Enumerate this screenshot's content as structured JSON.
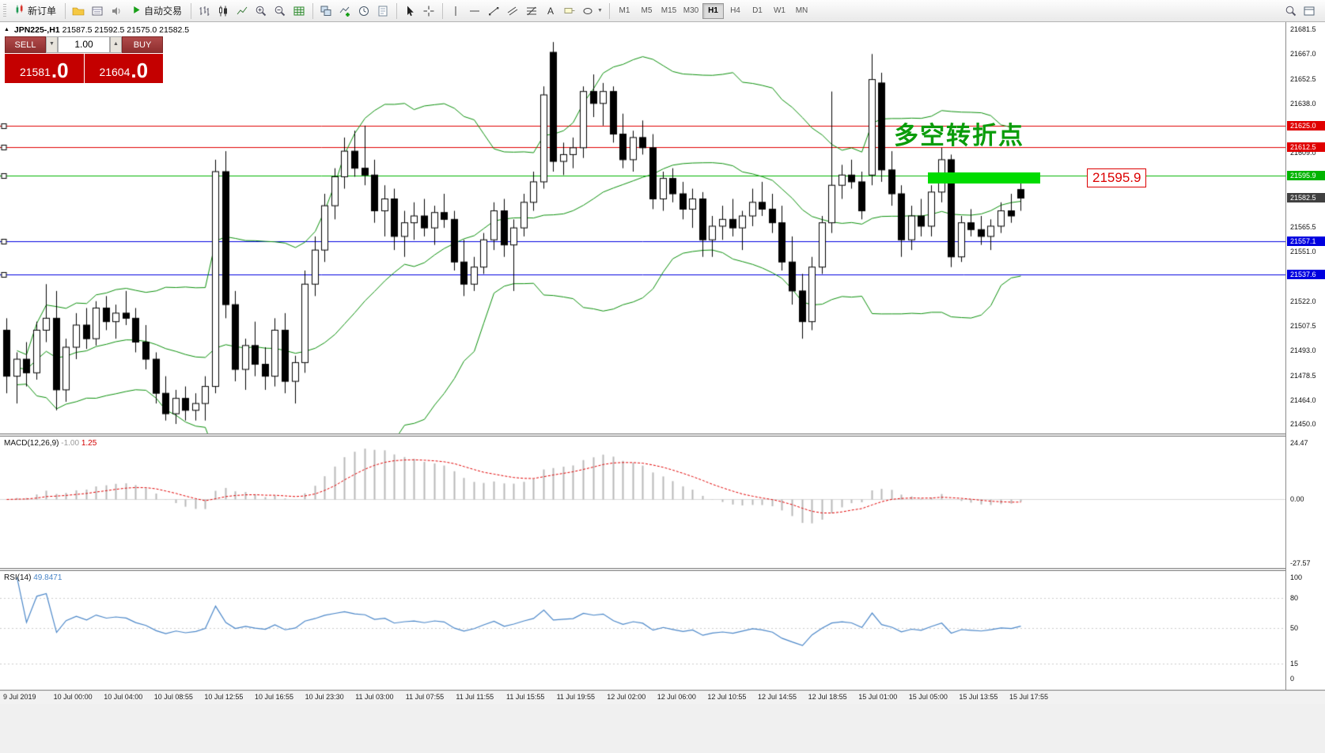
{
  "toolbar": {
    "new_order": "新订单",
    "autotrade": "自动交易",
    "timeframes": [
      "M1",
      "M5",
      "M15",
      "M30",
      "H1",
      "H4",
      "D1",
      "W1",
      "MN"
    ],
    "active_timeframe": "H1"
  },
  "trade_panel": {
    "sell_label": "SELL",
    "buy_label": "BUY",
    "volume": "1.00",
    "sell_price": "21581",
    "sell_pips": ".0",
    "buy_price": "21604",
    "buy_pips": ".0"
  },
  "chart": {
    "symbol": "JPN225-,H1",
    "ohlc_text": "21587.5 21592.5 21575.0 21582.5",
    "annotation": "多空转折点",
    "price_tag": "21595.9",
    "bollinger_color": "#0a8f0a",
    "current_price": {
      "text": "21582.5",
      "bg": "#404040"
    }
  },
  "macd": {
    "name": "MACD(12,26,9)",
    "value_main": "-1.00",
    "value_signal": "1.25",
    "axis": [
      "24.47",
      "0.00",
      "-27.57"
    ],
    "histogram_color": "#b8b8b8",
    "signal_color": "#e00000"
  },
  "rsi": {
    "name": "RSI(14)",
    "value": "49.8471",
    "axis": [
      "100",
      "80",
      "50",
      "15",
      "0"
    ],
    "axis_values": [
      100,
      80,
      50,
      15,
      0
    ],
    "levels": [
      80,
      50,
      15
    ],
    "line_color": "#4a86c8"
  },
  "time_axis": [
    "9 Jul 2019",
    "10 Jul 00:00",
    "10 Jul 04:00",
    "10 Jul 08:55",
    "10 Jul 12:55",
    "10 Jul 16:55",
    "10 Jul 23:30",
    "11 Jul 03:00",
    "11 Jul 07:55",
    "11 Jul 11:55",
    "11 Jul 15:55",
    "11 Jul 19:55",
    "12 Jul 02:00",
    "12 Jul 06:00",
    "12 Jul 10:55",
    "12 Jul 14:55",
    "12 Jul 18:55",
    "15 Jul 01:00",
    "15 Jul 05:00",
    "15 Jul 13:55",
    "15 Jul 17:55"
  ],
  "chart_data": {
    "type": "candlestick",
    "symbol": "JPN225-",
    "timeframe": "H1",
    "price_range": [
      21450.0,
      21681.5
    ],
    "price_ticks": [
      "21681.5",
      "21667.0",
      "21652.5",
      "21638.0",
      "21609.0",
      "21565.5",
      "21551.0",
      "21522.0",
      "21507.5",
      "21493.0",
      "21478.5",
      "21464.0",
      "21450.0"
    ],
    "hlines": [
      {
        "price": 21625.0,
        "label": "21625.0",
        "color": "#e00000"
      },
      {
        "price": 21612.5,
        "label": "21612.5",
        "color": "#e00000"
      },
      {
        "price": 21595.9,
        "label": "21595.9",
        "color": "#00b400"
      },
      {
        "price": 21557.1,
        "label": "21557.1",
        "color": "#0000e0"
      },
      {
        "price": 21537.6,
        "label": "21537.6",
        "color": "#0000e0"
      }
    ],
    "current_price": 21582.5,
    "highlight_rect": {
      "price": 21595.9,
      "color": "#00dc00"
    },
    "indicators": [
      "Bollinger Bands",
      "MACD(12,26,9)",
      "RSI(14)"
    ],
    "ohlc": [
      [
        21505,
        21512,
        21468,
        21478
      ],
      [
        21478,
        21492,
        21462,
        21488
      ],
      [
        21488,
        21498,
        21472,
        21480
      ],
      [
        21480,
        21510,
        21476,
        21505
      ],
      [
        21505,
        21532,
        21498,
        21512
      ],
      [
        21512,
        21528,
        21458,
        21470
      ],
      [
        21470,
        21500,
        21463,
        21495
      ],
      [
        21495,
        21515,
        21488,
        21508
      ],
      [
        21508,
        21518,
        21494,
        21500
      ],
      [
        21500,
        21522,
        21496,
        21518
      ],
      [
        21518,
        21525,
        21505,
        21510
      ],
      [
        21510,
        21520,
        21500,
        21515
      ],
      [
        21515,
        21528,
        21508,
        21512
      ],
      [
        21512,
        21518,
        21492,
        21498
      ],
      [
        21498,
        21508,
        21482,
        21488
      ],
      [
        21488,
        21492,
        21462,
        21468
      ],
      [
        21468,
        21478,
        21452,
        21456
      ],
      [
        21456,
        21470,
        21450,
        21465
      ],
      [
        21465,
        21472,
        21452,
        21458
      ],
      [
        21458,
        21468,
        21452,
        21462
      ],
      [
        21462,
        21478,
        21452,
        21472
      ],
      [
        21472,
        21605,
        21468,
        21598
      ],
      [
        21598,
        21610,
        21512,
        21520
      ],
      [
        21520,
        21528,
        21475,
        21482
      ],
      [
        21482,
        21500,
        21470,
        21496
      ],
      [
        21496,
        21510,
        21478,
        21485
      ],
      [
        21485,
        21495,
        21470,
        21478
      ],
      [
        21478,
        21512,
        21472,
        21505
      ],
      [
        21505,
        21515,
        21468,
        21475
      ],
      [
        21475,
        21490,
        21462,
        21486
      ],
      [
        21486,
        21540,
        21480,
        21532
      ],
      [
        21532,
        21560,
        21525,
        21552
      ],
      [
        21552,
        21585,
        21545,
        21578
      ],
      [
        21578,
        21600,
        21570,
        21595
      ],
      [
        21595,
        21618,
        21588,
        21610
      ],
      [
        21610,
        21622,
        21595,
        21600
      ],
      [
        21600,
        21625,
        21590,
        21596
      ],
      [
        21596,
        21605,
        21568,
        21575
      ],
      [
        21575,
        21590,
        21560,
        21582
      ],
      [
        21582,
        21588,
        21552,
        21560
      ],
      [
        21560,
        21575,
        21548,
        21568
      ],
      [
        21568,
        21580,
        21558,
        21572
      ],
      [
        21572,
        21582,
        21560,
        21565
      ],
      [
        21565,
        21578,
        21555,
        21574
      ],
      [
        21574,
        21585,
        21565,
        21570
      ],
      [
        21570,
        21575,
        21540,
        21545
      ],
      [
        21545,
        21558,
        21525,
        21532
      ],
      [
        21532,
        21548,
        21528,
        21542
      ],
      [
        21542,
        21562,
        21538,
        21558
      ],
      [
        21558,
        21580,
        21552,
        21575
      ],
      [
        21575,
        21582,
        21548,
        21555
      ],
      [
        21555,
        21570,
        21528,
        21565
      ],
      [
        21565,
        21585,
        21560,
        21580
      ],
      [
        21580,
        21598,
        21575,
        21592
      ],
      [
        21592,
        21648,
        21588,
        21643
      ],
      [
        21668,
        21674,
        21598,
        21604
      ],
      [
        21604,
        21615,
        21596,
        21608
      ],
      [
        21608,
        21618,
        21600,
        21612
      ],
      [
        21612,
        21648,
        21606,
        21645
      ],
      [
        21645,
        21655,
        21630,
        21638
      ],
      [
        21638,
        21650,
        21625,
        21645
      ],
      [
        21645,
        21648,
        21615,
        21620
      ],
      [
        21620,
        21632,
        21600,
        21605
      ],
      [
        21605,
        21622,
        21598,
        21618
      ],
      [
        21618,
        21628,
        21608,
        21612
      ],
      [
        21612,
        21620,
        21576,
        21582
      ],
      [
        21582,
        21598,
        21575,
        21594
      ],
      [
        21594,
        21600,
        21580,
        21585
      ],
      [
        21585,
        21592,
        21570,
        21576
      ],
      [
        21576,
        21588,
        21565,
        21582
      ],
      [
        21582,
        21586,
        21548,
        21558
      ],
      [
        21558,
        21572,
        21548,
        21566
      ],
      [
        21566,
        21578,
        21558,
        21570
      ],
      [
        21570,
        21582,
        21560,
        21565
      ],
      [
        21565,
        21575,
        21552,
        21572
      ],
      [
        21572,
        21588,
        21566,
        21580
      ],
      [
        21580,
        21592,
        21572,
        21576
      ],
      [
        21576,
        21585,
        21562,
        21568
      ],
      [
        21568,
        21578,
        21540,
        21545
      ],
      [
        21545,
        21560,
        21520,
        21528
      ],
      [
        21528,
        21538,
        21500,
        21510
      ],
      [
        21510,
        21548,
        21505,
        21542
      ],
      [
        21542,
        21572,
        21538,
        21568
      ],
      [
        21568,
        21645,
        21562,
        21590
      ],
      [
        21590,
        21602,
        21582,
        21596
      ],
      [
        21596,
        21605,
        21588,
        21592
      ],
      [
        21592,
        21598,
        21570,
        21575
      ],
      [
        21596,
        21667,
        21590,
        21652
      ],
      [
        21650,
        21656,
        21592,
        21599
      ],
      [
        21599,
        21610,
        21578,
        21585
      ],
      [
        21585,
        21590,
        21548,
        21558
      ],
      [
        21558,
        21578,
        21552,
        21572
      ],
      [
        21572,
        21582,
        21560,
        21566
      ],
      [
        21566,
        21590,
        21560,
        21586
      ],
      [
        21586,
        21612,
        21580,
        21605
      ],
      [
        21605,
        21608,
        21542,
        21548
      ],
      [
        21548,
        21572,
        21545,
        21568
      ],
      [
        21568,
        21576,
        21560,
        21564
      ],
      [
        21564,
        21572,
        21555,
        21560
      ],
      [
        21560,
        21570,
        21552,
        21566
      ],
      [
        21566,
        21580,
        21562,
        21575
      ],
      [
        21575,
        21585,
        21568,
        21572
      ],
      [
        21587.5,
        21592.5,
        21575,
        21582.5
      ]
    ]
  }
}
